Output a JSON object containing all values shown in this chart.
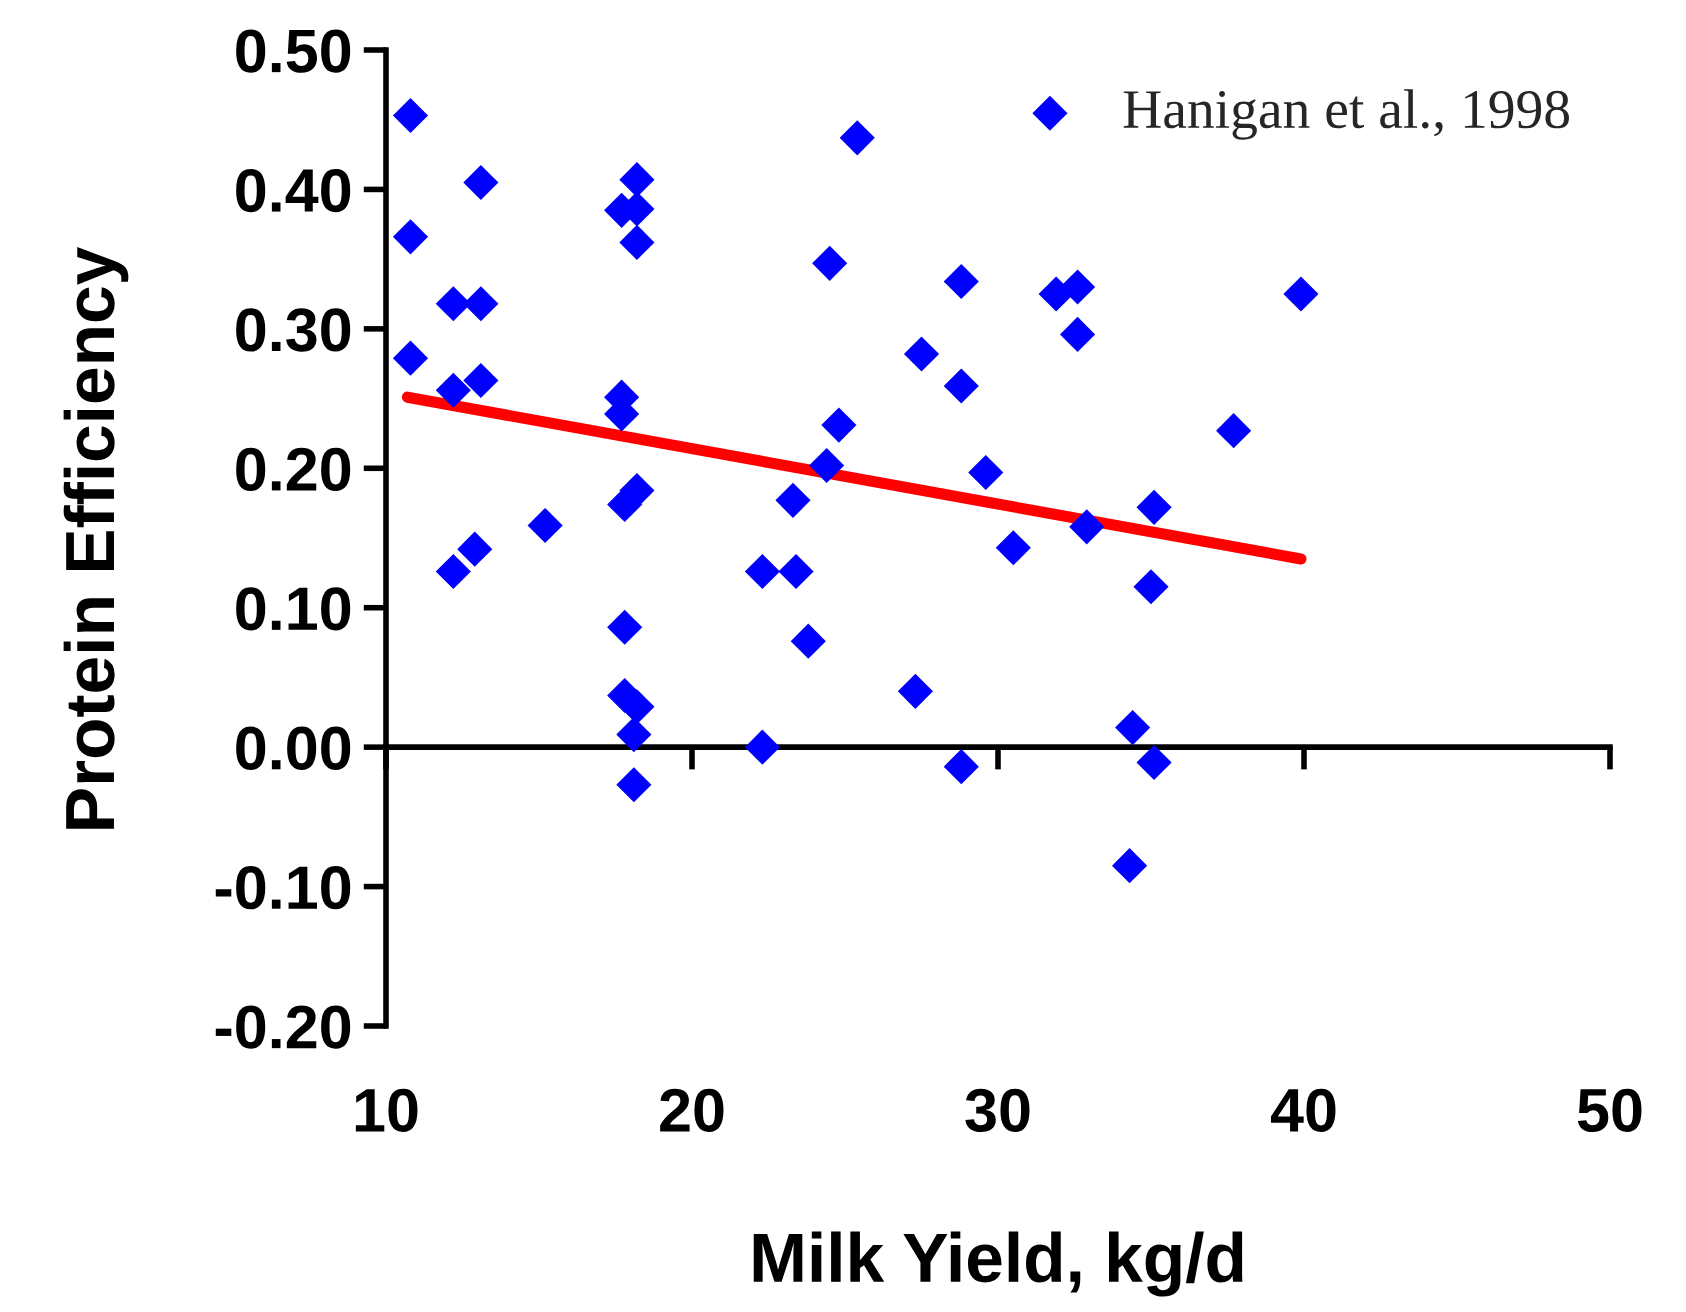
{
  "chart_data": {
    "type": "scatter",
    "xlabel": "Milk Yield, kg/d",
    "ylabel": "Protein Efficiency",
    "xlim": [
      10,
      50
    ],
    "xticks": [
      10,
      20,
      30,
      40,
      50
    ],
    "ylim": [
      -0.2,
      0.5
    ],
    "yticks": [
      {
        "value": -0.2,
        "label": "-0.20"
      },
      {
        "value": -0.1,
        "label": "-0.10"
      },
      {
        "value": 0.0,
        "label": "0.00"
      },
      {
        "value": 0.1,
        "label": "0.10"
      },
      {
        "value": 0.2,
        "label": "0.20"
      },
      {
        "value": 0.3,
        "label": "0.30"
      },
      {
        "value": 0.4,
        "label": "0.40"
      },
      {
        "value": 0.5,
        "label": "0.50"
      }
    ],
    "legend": "top right",
    "marker": "diamond",
    "series": [
      {
        "name": "Hanigan et al., 1998",
        "color": "#0000ff",
        "x": [
          10.8,
          10.8,
          10.8,
          12.2,
          13.1,
          13.1,
          12.2,
          13.1,
          12.2,
          12.9,
          15.2,
          17.7,
          18.2,
          18.2,
          18.2,
          17.7,
          17.7,
          17.8,
          18.2,
          17.8,
          17.8,
          18.2,
          18.1,
          18.1,
          22.3,
          22.3,
          23.4,
          23.3,
          23.8,
          24.4,
          24.8,
          24.5,
          25.4,
          27.5,
          28.8,
          28.8,
          29.6,
          27.3,
          28.8,
          30.5,
          31.9,
          32.6,
          32.6,
          39.9,
          37.7,
          35.1,
          32.9,
          35.0,
          34.4,
          35.1,
          34.3
        ],
        "values": [
          0.453,
          0.366,
          0.279,
          0.318,
          0.318,
          0.405,
          0.256,
          0.263,
          0.126,
          0.142,
          0.159,
          0.385,
          0.386,
          0.407,
          0.362,
          0.251,
          0.239,
          0.174,
          0.184,
          0.086,
          0.037,
          0.029,
          0.009,
          -0.027,
          0.126,
          0.0,
          0.126,
          0.177,
          0.076,
          0.202,
          0.231,
          0.347,
          0.437,
          0.282,
          0.334,
          0.259,
          0.197,
          0.04,
          -0.014,
          0.143,
          0.325,
          0.33,
          0.296,
          0.325,
          0.227,
          0.172,
          0.158,
          0.115,
          0.014,
          -0.011,
          -0.085
        ]
      },
      {
        "type": "line",
        "color": "#ff0000",
        "x": [
          10.7,
          39.9
        ],
        "values": [
          0.251,
          0.135
        ],
        "marker": "none",
        "line_style": "solid"
      }
    ]
  }
}
